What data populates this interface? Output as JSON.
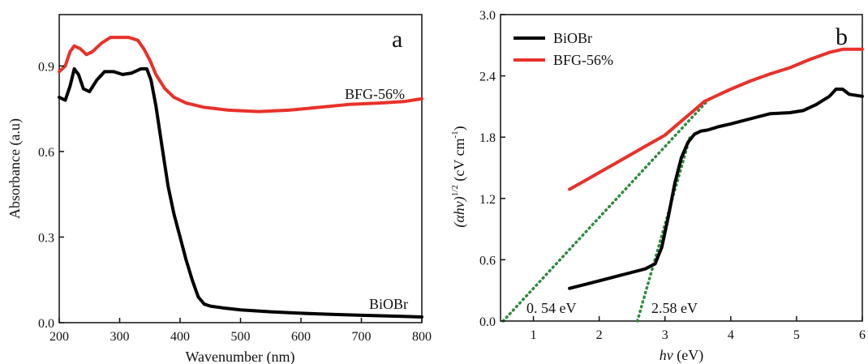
{
  "chart_data": [
    {
      "type": "line",
      "panel_label": "a",
      "xlabel": "Wavenumber (nm)",
      "ylabel": "Absorbance (a.u)",
      "xlim": [
        200,
        800
      ],
      "ylim": [
        0,
        1.08
      ],
      "xticks": [
        "200",
        "300",
        "400",
        "500",
        "600",
        "700",
        "800"
      ],
      "yticks": [
        "0.0",
        "0.3",
        "0.6",
        "0.9"
      ],
      "legend": "none",
      "series": [
        {
          "name": "BiOBr",
          "color": "#000000",
          "x": [
            200,
            210,
            218,
            225,
            232,
            240,
            250,
            262,
            275,
            290,
            305,
            320,
            335,
            345,
            352,
            360,
            370,
            380,
            390,
            400,
            410,
            420,
            430,
            440,
            450,
            470,
            500,
            550,
            600,
            650,
            700,
            750,
            800
          ],
          "y": [
            0.79,
            0.78,
            0.83,
            0.89,
            0.87,
            0.82,
            0.81,
            0.85,
            0.88,
            0.88,
            0.87,
            0.875,
            0.89,
            0.89,
            0.85,
            0.76,
            0.62,
            0.48,
            0.38,
            0.3,
            0.22,
            0.15,
            0.09,
            0.065,
            0.058,
            0.052,
            0.045,
            0.038,
            0.033,
            0.029,
            0.026,
            0.023,
            0.02
          ]
        },
        {
          "name": "BFG-56%",
          "color": "#e8312a",
          "x": [
            200,
            210,
            218,
            225,
            235,
            245,
            255,
            270,
            285,
            300,
            315,
            330,
            340,
            350,
            360,
            375,
            390,
            410,
            440,
            480,
            530,
            580,
            630,
            680,
            730,
            770,
            800
          ],
          "y": [
            0.88,
            0.9,
            0.95,
            0.97,
            0.96,
            0.94,
            0.95,
            0.98,
            1.0,
            1.0,
            1.0,
            0.99,
            0.96,
            0.92,
            0.87,
            0.82,
            0.79,
            0.77,
            0.755,
            0.745,
            0.74,
            0.745,
            0.755,
            0.765,
            0.77,
            0.775,
            0.785
          ]
        }
      ],
      "annotations": [
        "BFG-56%",
        "BiOBr"
      ]
    },
    {
      "type": "line",
      "panel_label": "b",
      "xlabel": "hν (eV)",
      "ylabel": "(αhν)^1/2 (cV cm^-1)",
      "xlim": [
        0.5,
        6
      ],
      "ylim": [
        0,
        3
      ],
      "xticks": [
        "1",
        "2",
        "3",
        "4",
        "5",
        "6"
      ],
      "yticks": [
        "0.0",
        "0.6",
        "1.2",
        "1.8",
        "2.4",
        "3.0"
      ],
      "legend": "top-left",
      "series": [
        {
          "name": "BiOBr",
          "color": "#000000",
          "x": [
            1.55,
            1.8,
            2.1,
            2.4,
            2.7,
            2.85,
            2.95,
            3.05,
            3.15,
            3.25,
            3.35,
            3.45,
            3.55,
            3.65,
            3.8,
            4.0,
            4.3,
            4.6,
            4.9,
            5.1,
            5.3,
            5.5,
            5.6,
            5.7,
            5.8,
            6.0
          ],
          "y": [
            0.32,
            0.36,
            0.41,
            0.46,
            0.51,
            0.56,
            0.72,
            1.02,
            1.35,
            1.6,
            1.75,
            1.83,
            1.86,
            1.87,
            1.9,
            1.93,
            1.98,
            2.03,
            2.04,
            2.06,
            2.12,
            2.2,
            2.27,
            2.27,
            2.22,
            2.2
          ]
        },
        {
          "name": "BFG-56%",
          "color": "#e8312a",
          "x": [
            1.55,
            1.8,
            2.1,
            2.4,
            2.7,
            3.0,
            3.2,
            3.4,
            3.6,
            3.8,
            4.0,
            4.3,
            4.6,
            4.9,
            5.2,
            5.5,
            5.7,
            6.0
          ],
          "y": [
            1.29,
            1.38,
            1.49,
            1.6,
            1.71,
            1.82,
            1.93,
            2.04,
            2.15,
            2.21,
            2.27,
            2.35,
            2.42,
            2.48,
            2.56,
            2.63,
            2.66,
            2.66
          ]
        }
      ],
      "fit_lines": [
        {
          "color": "#2e8b3e",
          "x": [
            0.54,
            3.68
          ],
          "y": [
            0.0,
            2.18
          ]
        },
        {
          "color": "#2e8b3e",
          "x": [
            2.58,
            3.38
          ],
          "y": [
            0.0,
            1.8
          ]
        }
      ],
      "annotations": [
        "0. 54 eV",
        "2.58 eV"
      ]
    }
  ]
}
